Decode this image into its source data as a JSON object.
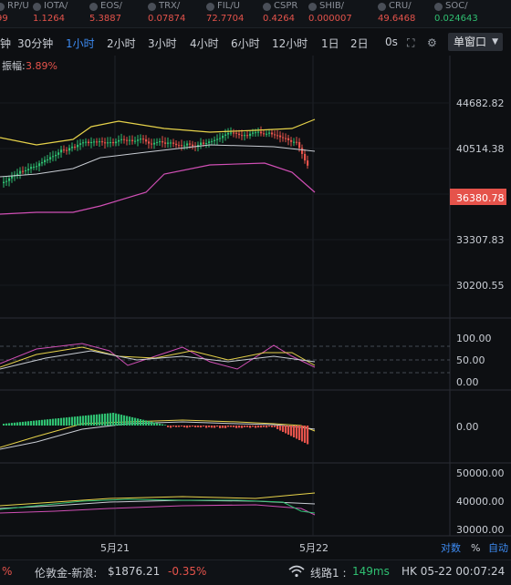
{
  "ticker": [
    {
      "symbol": "RP/U",
      "price": "99",
      "dir": "down"
    },
    {
      "symbol": "IOTA/",
      "price": "1.1264",
      "dir": "down"
    },
    {
      "symbol": "EOS/",
      "price": "5.3887",
      "dir": "down"
    },
    {
      "symbol": "TRX/",
      "price": "0.07874",
      "dir": "down"
    },
    {
      "symbol": "FIL/U",
      "price": "72.7704",
      "dir": "down"
    },
    {
      "symbol": "CSPR",
      "price": "0.4264",
      "dir": "down"
    },
    {
      "symbol": "SHIB/",
      "price": "0.000007",
      "dir": "down"
    },
    {
      "symbol": "CRU/",
      "price": "49.6468",
      "dir": "down"
    },
    {
      "symbol": "SOC/",
      "price": "0.024643",
      "dir": "up"
    }
  ],
  "toolbar": {
    "timeframes": [
      "钟",
      "30分钟",
      "1小时",
      "2小时",
      "3小时",
      "4小时",
      "6小时",
      "12小时",
      "1日",
      "2日"
    ],
    "active_index": 2,
    "zero_seconds": "0s",
    "window_label": "单窗口"
  },
  "chart": {
    "amplitude_label": "振幅:",
    "amplitude_value": "3.89%",
    "price_axis": [
      "44682.82",
      "40514.38",
      "33307.83",
      "30200.55"
    ],
    "current_price": "36380.78",
    "kdj_axis": [
      "100.00",
      "50.00",
      "0.00"
    ],
    "macd_axis": [
      "0.00"
    ],
    "overview_axis": [
      "50000.00",
      "40000.00",
      "30000.00"
    ],
    "dates": [
      "5月21",
      "5月22"
    ],
    "scale_buttons": [
      "对数",
      "%",
      "自动"
    ]
  },
  "footer": {
    "left_pct": "%",
    "index_name": "伦敦金-新浪:",
    "index_price": "$1876.21",
    "index_change": "-0.35%",
    "line_label": "线路1 :",
    "latency": "149ms",
    "timestamp": "HK 05-22 00:07:24"
  },
  "colors": {
    "up": "#2fbf71",
    "down": "#e5534b",
    "accent": "#3d8bf2",
    "price_tag": "#e5534b"
  }
}
